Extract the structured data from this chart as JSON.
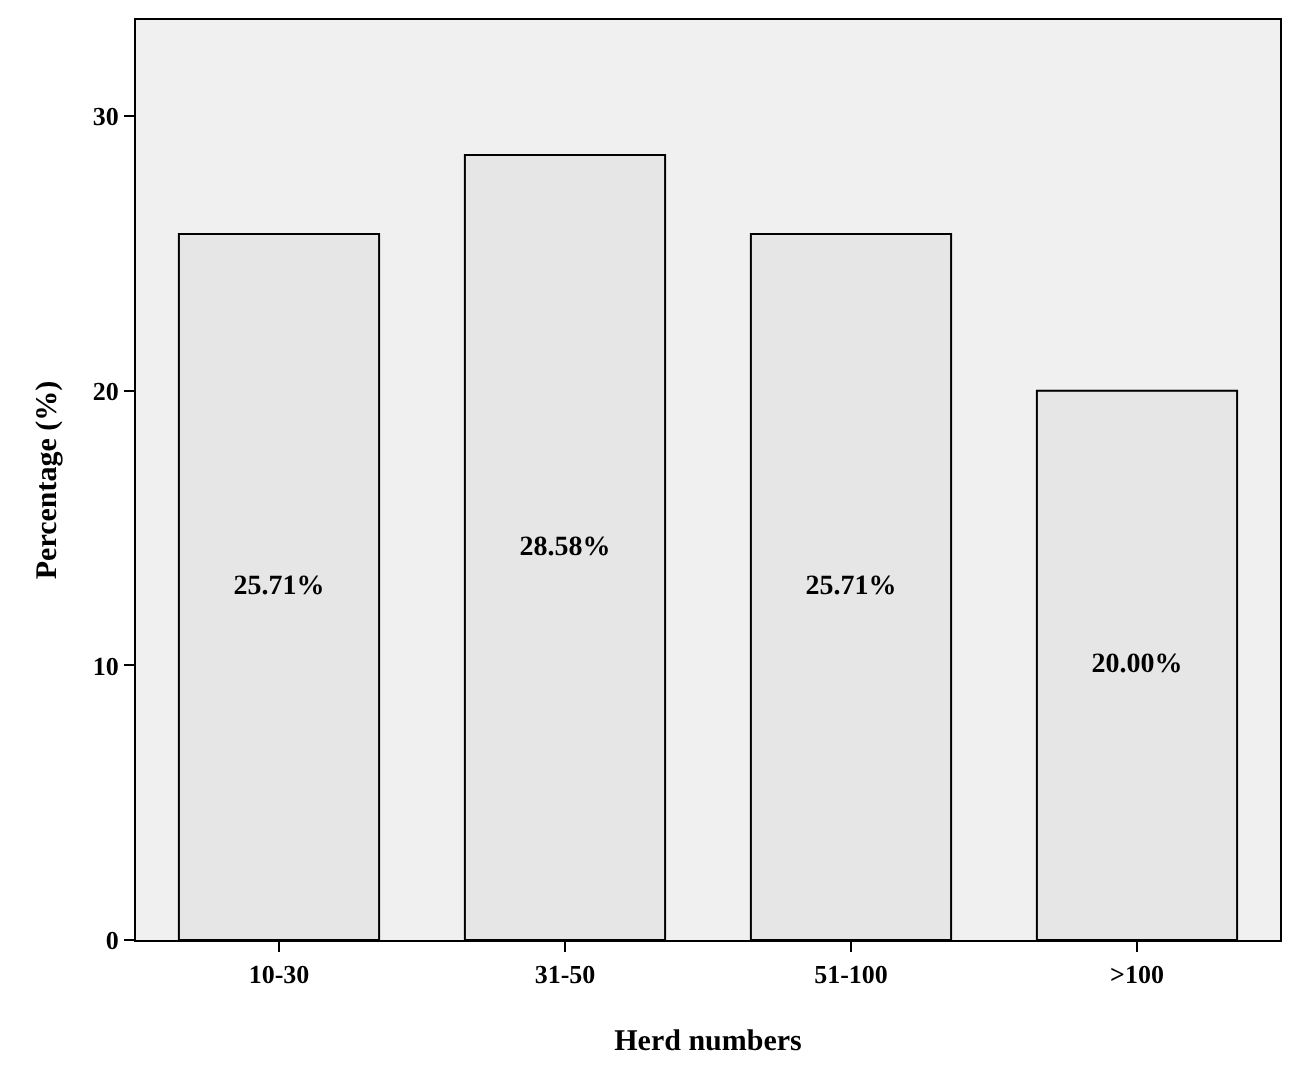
{
  "chart_data": {
    "type": "bar",
    "xlabel": "Herd numbers",
    "ylabel": "Percentage (%)",
    "categories": [
      "10-30",
      "31-50",
      "51-100",
      ">100"
    ],
    "values": [
      25.71,
      28.58,
      25.71,
      20.0
    ],
    "value_labels": [
      "25.71%",
      "28.58%",
      "25.71%",
      "20.00%"
    ],
    "color": "#e6e6e6",
    "ylim": [
      0,
      33.5
    ],
    "yticks": [
      0,
      10,
      20,
      30
    ],
    "grid": false
  }
}
